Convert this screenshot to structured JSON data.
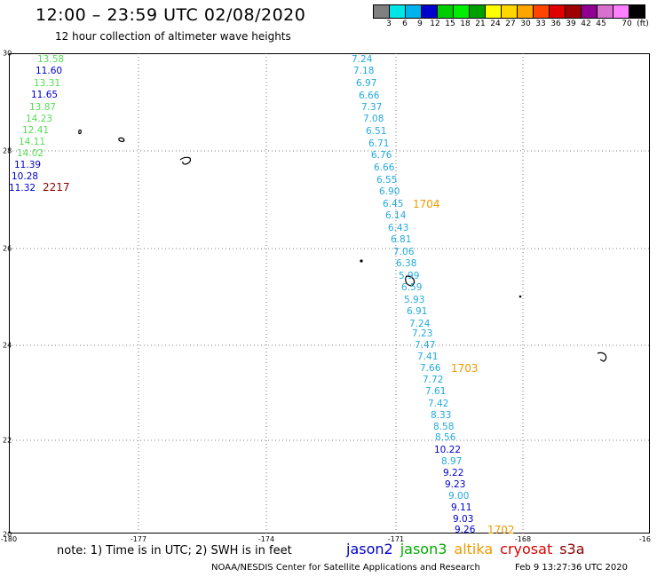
{
  "header": {
    "title": "12:00 – 23:59 UTC 02/08/2020",
    "subtitle": "12 hour collection of altimeter wave heights"
  },
  "legend": {
    "unit": "(ft)",
    "colors": [
      "#808080",
      "#00e5e5",
      "#00b2ee",
      "#0000cd",
      "#00cd00",
      "#00ee00",
      "#00a000",
      "#ffff00",
      "#ffd700",
      "#ffa500",
      "#ff4500",
      "#e00000",
      "#a00000",
      "#900090",
      "#d870d0",
      "#ff80ff",
      "#000000"
    ],
    "labels": [
      "3",
      "6",
      "9",
      "12",
      "15",
      "18",
      "21",
      "24",
      "27",
      "30",
      "33",
      "36",
      "39",
      "42",
      "45",
      "70"
    ]
  },
  "axes": {
    "y_ticks": [
      "30",
      "28",
      "26",
      "24",
      "22",
      "20"
    ],
    "x_ticks": [
      "-180",
      "-177",
      "-174",
      "-171",
      "-168",
      "-16"
    ]
  },
  "track_points": [
    {
      "text": "13.58",
      "color": "#55dd55"
    },
    {
      "text": "11.60",
      "color": "#0000cc"
    },
    {
      "text": "13.31",
      "color": "#55dd55"
    },
    {
      "text": "11.65",
      "color": "#0000cc"
    },
    {
      "text": "13.87",
      "color": "#55dd55"
    },
    {
      "text": "14.23",
      "color": "#55dd55"
    },
    {
      "text": "12.41",
      "color": "#55dd55"
    },
    {
      "text": "14.11",
      "color": "#55dd55"
    },
    {
      "text": "14.02",
      "color": "#55dd55"
    },
    {
      "text": "11.39",
      "color": "#0000cc"
    },
    {
      "text": "10.28",
      "color": "#0000cc"
    },
    {
      "text": "11.32",
      "color": "#0000cc"
    },
    {
      "text": "7.24",
      "color": "#22aadd"
    },
    {
      "text": "7.18",
      "color": "#22aadd"
    },
    {
      "text": "6.97",
      "color": "#22aadd"
    },
    {
      "text": "6.66",
      "color": "#22aadd"
    },
    {
      "text": "7.37",
      "color": "#22aadd"
    },
    {
      "text": "7.08",
      "color": "#22aadd"
    },
    {
      "text": "6.51",
      "color": "#22aadd"
    },
    {
      "text": "6.71",
      "color": "#22aadd"
    },
    {
      "text": "6.76",
      "color": "#22aadd"
    },
    {
      "text": "6.66",
      "color": "#22aadd"
    },
    {
      "text": "6.55",
      "color": "#22aadd"
    },
    {
      "text": "6.90",
      "color": "#22aadd"
    },
    {
      "text": "6.45",
      "color": "#22aadd"
    },
    {
      "text": "6.14",
      "color": "#22aadd"
    },
    {
      "text": "6.43",
      "color": "#22aadd"
    },
    {
      "text": "6.81",
      "color": "#22aadd"
    },
    {
      "text": "7.06",
      "color": "#22aadd"
    },
    {
      "text": "6.38",
      "color": "#22aadd"
    },
    {
      "text": "5.99",
      "color": "#22aadd"
    },
    {
      "text": "6.59",
      "color": "#22aadd"
    },
    {
      "text": "5.93",
      "color": "#22aadd"
    },
    {
      "text": "6.91",
      "color": "#22aadd"
    },
    {
      "text": "7.24",
      "color": "#22aadd"
    },
    {
      "text": "7.23",
      "color": "#22aadd"
    },
    {
      "text": "7.47",
      "color": "#22aadd"
    },
    {
      "text": "7.41",
      "color": "#22aadd"
    },
    {
      "text": "7.66",
      "color": "#22aadd"
    },
    {
      "text": "7.72",
      "color": "#22aadd"
    },
    {
      "text": "7.61",
      "color": "#22aadd"
    },
    {
      "text": "7.42",
      "color": "#22aadd"
    },
    {
      "text": "8.33",
      "color": "#22aadd"
    },
    {
      "text": "8.58",
      "color": "#22aadd"
    },
    {
      "text": "8.56",
      "color": "#22aadd"
    },
    {
      "text": "10.22",
      "color": "#0000cc"
    },
    {
      "text": "8.97",
      "color": "#22aadd"
    },
    {
      "text": "9.22",
      "color": "#0000cc"
    },
    {
      "text": "9.23",
      "color": "#0000cc"
    },
    {
      "text": "9.00",
      "color": "#22aadd"
    },
    {
      "text": "9.11",
      "color": "#0000cc"
    },
    {
      "text": "9.03",
      "color": "#0000cc"
    },
    {
      "text": "9.26",
      "color": "#0000cc"
    }
  ],
  "pass_times": [
    {
      "text": "2217",
      "color": "#8b0000"
    },
    {
      "text": "1704",
      "color": "#ee9900"
    },
    {
      "text": "1703",
      "color": "#ee9900"
    },
    {
      "text": "1702",
      "color": "#ee9900"
    }
  ],
  "footer": {
    "note": "note:  1) Time is in UTC;  2) SWH is in feet",
    "satellites": [
      {
        "name": "jason2",
        "color": "#0000cc"
      },
      {
        "name": "jason3",
        "color": "#00aa00"
      },
      {
        "name": "altika",
        "color": "#ee9900"
      },
      {
        "name": "cryosat",
        "color": "#dd0000"
      },
      {
        "name": "s3a",
        "color": "#880000"
      }
    ],
    "credit": "NOAA/NESDIS Center for Satellite Applications and Research",
    "timestamp": "Feb  9 13:27:36 UTC 2020"
  }
}
